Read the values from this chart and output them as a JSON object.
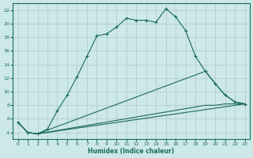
{
  "xlabel": "Humidex (Indice chaleur)",
  "bg_color": "#cce8e8",
  "grid_color": "#b0c8c8",
  "line_color": "#1a6b5a",
  "xlim": [
    -0.5,
    23.5
  ],
  "ylim": [
    3,
    23
  ],
  "yticks": [
    4,
    6,
    8,
    10,
    12,
    14,
    16,
    18,
    20,
    22
  ],
  "xticks": [
    0,
    1,
    2,
    3,
    4,
    5,
    6,
    7,
    8,
    9,
    10,
    11,
    12,
    13,
    14,
    15,
    16,
    17,
    18,
    19,
    20,
    21,
    22,
    23
  ],
  "curve1_x": [
    0,
    1,
    2,
    3,
    4,
    5,
    6,
    7,
    8,
    9,
    10,
    11,
    12,
    13,
    14,
    15,
    16,
    17,
    18,
    19,
    20,
    21,
    22,
    23
  ],
  "curve1_y": [
    5.5,
    4.0,
    3.8,
    4.5,
    7.2,
    9.5,
    12.2,
    15.2,
    18.2,
    18.5,
    19.5,
    20.8,
    20.5,
    20.5,
    20.2,
    22.2,
    21.0,
    19.0,
    15.2,
    13.0,
    11.2,
    9.5,
    8.5,
    8.2
  ],
  "curve2_x": [
    0,
    1,
    2,
    23
  ],
  "curve2_y": [
    5.5,
    4.0,
    3.8,
    8.2
  ],
  "curve3_x": [
    0,
    1,
    2,
    19,
    20,
    21,
    22,
    23
  ],
  "curve3_y": [
    5.5,
    4.0,
    3.8,
    13.0,
    11.2,
    9.5,
    8.5,
    8.2
  ],
  "curve4_x": [
    0,
    1,
    2,
    19,
    20,
    21,
    22,
    23
  ],
  "curve4_y": [
    5.5,
    4.0,
    3.8,
    8.0,
    8.0,
    8.2,
    8.2,
    8.2
  ]
}
